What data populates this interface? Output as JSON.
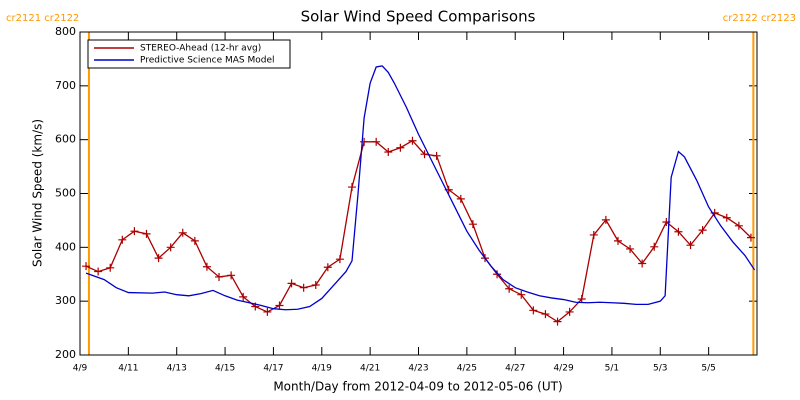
{
  "chart_data": {
    "type": "line",
    "title": "Solar Wind Speed Comparisons",
    "x_label": "Month/Day from 2012-04-09 to 2012-05-06 (UT)",
    "y_label": "Solar Wind Speed (km/s)",
    "xlim": [
      0,
      28
    ],
    "ylim": [
      200,
      800
    ],
    "xticks": [
      {
        "value": 0,
        "label": "4/9"
      },
      {
        "value": 2,
        "label": "4/11"
      },
      {
        "value": 4,
        "label": "4/13"
      },
      {
        "value": 6,
        "label": "4/15"
      },
      {
        "value": 8,
        "label": "4/17"
      },
      {
        "value": 10,
        "label": "4/19"
      },
      {
        "value": 12,
        "label": "4/21"
      },
      {
        "value": 14,
        "label": "4/23"
      },
      {
        "value": 16,
        "label": "4/25"
      },
      {
        "value": 18,
        "label": "4/27"
      },
      {
        "value": 20,
        "label": "4/29"
      },
      {
        "value": 22,
        "label": "5/1"
      },
      {
        "value": 24,
        "label": "5/3"
      },
      {
        "value": 26,
        "label": "5/5"
      }
    ],
    "yticks": [
      200,
      300,
      400,
      500,
      600,
      700,
      800
    ],
    "legend": "top-left",
    "boundaries": [
      {
        "x": 0.37,
        "label": "cr2121 cr2122",
        "color": "#ff9900"
      },
      {
        "x": 27.85,
        "label": "cr2122 cr2123",
        "color": "#ff9900"
      }
    ],
    "series": [
      {
        "name": "STEREO-Ahead (12-hr avg)",
        "color": "#aa0000",
        "markers": true,
        "x": [
          0.25,
          0.75,
          1.25,
          1.75,
          2.25,
          2.75,
          3.25,
          3.75,
          4.25,
          4.75,
          5.25,
          5.75,
          6.25,
          6.75,
          7.25,
          7.75,
          8.25,
          8.75,
          9.25,
          9.75,
          10.25,
          10.75,
          11.25,
          11.75,
          12.25,
          12.75,
          13.25,
          13.75,
          14.25,
          14.75,
          15.25,
          15.75,
          16.25,
          16.75,
          17.25,
          17.75,
          18.25,
          18.75,
          19.25,
          19.75,
          20.25,
          20.75,
          21.25,
          21.75,
          22.25,
          22.75,
          23.25,
          23.75,
          24.25,
          24.75,
          25.25,
          25.75,
          26.25,
          26.75,
          27.25,
          27.75
        ],
        "values": [
          365,
          355,
          362,
          414,
          430,
          425,
          380,
          400,
          427,
          412,
          364,
          345,
          348,
          308,
          290,
          280,
          292,
          333,
          325,
          330,
          363,
          378,
          512,
          596,
          596,
          577,
          585,
          598,
          573,
          570,
          507,
          490,
          443,
          380,
          350,
          323,
          312,
          283,
          276,
          262,
          280,
          304,
          423,
          451,
          412,
          397,
          370,
          401,
          447,
          429,
          404,
          432,
          464,
          455,
          440,
          418
        ]
      },
      {
        "name": "Predictive Science MAS Model",
        "color": "#0000cc",
        "markers": false,
        "x": [
          0.25,
          1,
          1.5,
          2,
          3,
          3.5,
          4,
          4.5,
          5,
          5.5,
          6,
          6.5,
          7,
          7.5,
          8,
          8.5,
          9,
          9.5,
          10,
          10.5,
          11,
          11.25,
          11.5,
          11.75,
          12,
          12.25,
          12.5,
          12.75,
          13,
          13.5,
          14,
          14.5,
          15,
          15.5,
          16,
          16.5,
          17,
          17.5,
          18,
          18.5,
          19,
          19.5,
          20,
          20.5,
          21,
          21.5,
          22,
          22.5,
          23,
          23.5,
          24,
          24.2,
          24.45,
          24.75,
          25,
          25.5,
          26,
          26.5,
          27,
          27.5,
          27.9
        ],
        "values": [
          352,
          340,
          325,
          316,
          315,
          317,
          312,
          310,
          314,
          320,
          310,
          302,
          297,
          292,
          286,
          284,
          285,
          290,
          305,
          330,
          355,
          375,
          500,
          640,
          705,
          735,
          737,
          725,
          705,
          660,
          610,
          565,
          520,
          475,
          430,
          395,
          365,
          340,
          325,
          317,
          310,
          306,
          303,
          298,
          297,
          298,
          297,
          296,
          294,
          294,
          300,
          310,
          530,
          578,
          568,
          525,
          475,
          440,
          410,
          385,
          358
        ]
      }
    ]
  }
}
